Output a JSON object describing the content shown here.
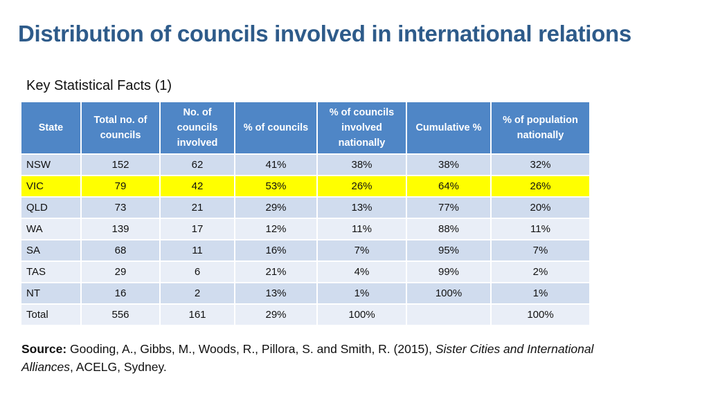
{
  "title": "Distribution of councils involved in international relations",
  "subtitle": "Key Statistical Facts (1)",
  "table": {
    "headers": [
      "State",
      "Total no. of councils",
      "No. of councils involved",
      "% of councils",
      "% of councils involved nationally",
      "Cumulative %",
      "% of population nationally"
    ],
    "rows": [
      [
        "NSW",
        "152",
        "62",
        "41%",
        "38%",
        "38%",
        "32%"
      ],
      [
        "VIC",
        "79",
        "42",
        "53%",
        "26%",
        "64%",
        "26%"
      ],
      [
        "QLD",
        "73",
        "21",
        "29%",
        "13%",
        "77%",
        "20%"
      ],
      [
        "WA",
        "139",
        "17",
        "12%",
        "11%",
        "88%",
        "11%"
      ],
      [
        "SA",
        "68",
        "11",
        "16%",
        "7%",
        "95%",
        "7%"
      ],
      [
        "TAS",
        "29",
        "6",
        "21%",
        "4%",
        "99%",
        "2%"
      ],
      [
        "NT",
        "16",
        "2",
        "13%",
        "1%",
        "100%",
        "1%"
      ],
      [
        "Total",
        "556",
        "161",
        "29%",
        "100%",
        "",
        "100%"
      ]
    ],
    "highlight_row": "VIC",
    "colors": {
      "header": "#4f86c6",
      "row_dark": "#d0dcee",
      "row_light": "#e9eef7",
      "highlight": "#ffff00"
    }
  },
  "source": {
    "label": "Source:",
    "text1": " Gooding, A., Gibbs, M., Woods, R., Pillora, S. and Smith, R. (2015), ",
    "title_italic": "Sister Cities and International Alliances",
    "text2": ", ACELG, Sydney."
  }
}
